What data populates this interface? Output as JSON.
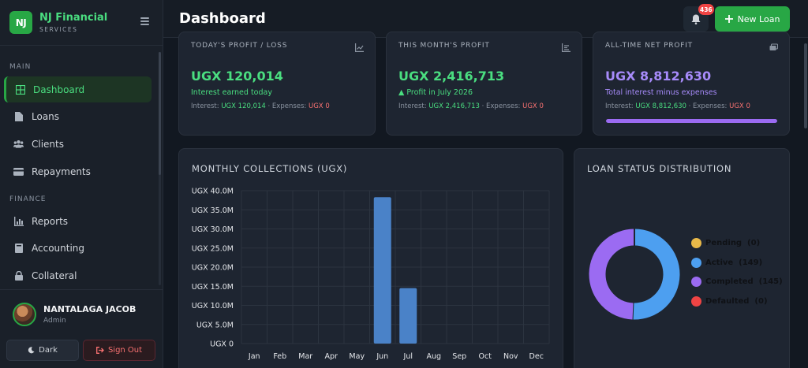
{
  "brand": {
    "logo": "NJ",
    "name": "NJ Financial",
    "sub": "SERVICES"
  },
  "sidebar": {
    "sections": [
      "MAIN",
      "FINANCE"
    ],
    "items": [
      {
        "label": "Dashboard",
        "icon": "grid-icon",
        "active": true
      },
      {
        "label": "Loans",
        "icon": "document-icon"
      },
      {
        "label": "Clients",
        "icon": "users-icon"
      },
      {
        "label": "Repayments",
        "icon": "card-icon"
      },
      {
        "label": "Reports",
        "icon": "chart-icon"
      },
      {
        "label": "Accounting",
        "icon": "book-icon"
      },
      {
        "label": "Collateral",
        "icon": "lock-icon"
      }
    ]
  },
  "user": {
    "name": "NANTALAGA JACOB",
    "role": "Admin"
  },
  "buttons": {
    "dark": "Dark",
    "signout": "Sign Out",
    "new_loan": "New Loan"
  },
  "header": {
    "title": "Dashboard",
    "notifications": "436"
  },
  "stats": [
    {
      "label": "TODAY'S PROFIT / LOSS",
      "value": "UGX 120,014",
      "sub": "Interest earned today",
      "interest_label": "Interest:",
      "interest": "UGX 120,014",
      "expenses_label": "· Expenses:",
      "expenses": "UGX 0"
    },
    {
      "label": "THIS MONTH'S PROFIT",
      "value": "UGX 2,416,713",
      "sub": "▲ Profit in July 2026",
      "interest_label": "Interest:",
      "interest": "UGX 2,416,713",
      "expenses_label": "· Expenses:",
      "expenses": "UGX 0"
    },
    {
      "label": "ALL-TIME NET PROFIT",
      "value": "UGX 8,812,630",
      "sub": "Total interest minus expenses",
      "interest_label": "Interest:",
      "interest": "UGX 8,812,630",
      "expenses_label": "· Expenses:",
      "expenses": "UGX 0",
      "progress": 1.0
    }
  ],
  "colors": {
    "accent": "#28a745",
    "bar": "#4a82c8",
    "purple": "#a78bfa"
  },
  "chart_data": [
    {
      "type": "bar",
      "title": "MONTHLY COLLECTIONS (UGX)",
      "categories": [
        "Jan",
        "Feb",
        "Mar",
        "Apr",
        "May",
        "Jun",
        "Jul",
        "Aug",
        "Sep",
        "Oct",
        "Nov",
        "Dec"
      ],
      "values": [
        0,
        0,
        0,
        0,
        0,
        38300000,
        14500000,
        0,
        0,
        0,
        0,
        0
      ],
      "ylim": [
        0,
        40000000
      ],
      "yticks": [
        "UGX 40.0M",
        "UGX 35.0M",
        "UGX 30.0M",
        "UGX 25.0M",
        "UGX 20.0M",
        "UGX 15.0M",
        "UGX 10.0M",
        "UGX 5.0M",
        "UGX 0"
      ],
      "grid": true
    },
    {
      "type": "pie",
      "title": "LOAN STATUS DISTRIBUTION",
      "labels": [
        "Pending",
        "Active",
        "Completed",
        "Defaulted"
      ],
      "values": [
        0,
        149,
        145,
        0
      ],
      "display": [
        "(0)",
        "(149)",
        "(145)",
        "(0)"
      ],
      "colors": [
        "#e9b949",
        "#4d9ff0",
        "#9b6bf2",
        "#ef4444"
      ],
      "legend": "right"
    }
  ]
}
